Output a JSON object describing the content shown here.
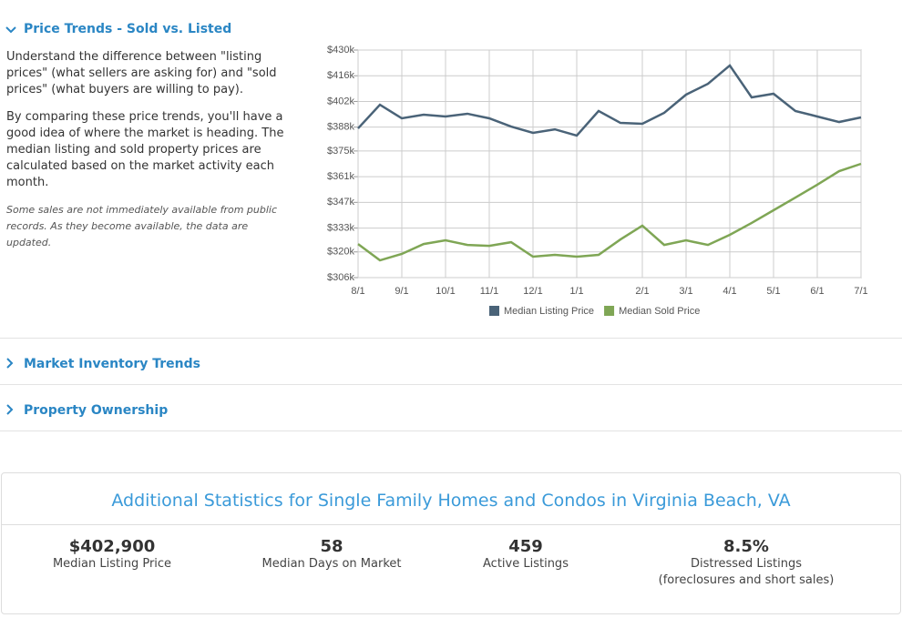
{
  "sections": [
    {
      "title": "Price Trends - Sold vs. Listed",
      "paragraphs": [
        "Understand the difference between \"listing prices\" (what sellers are asking for) and \"sold prices\" (what buyers are willing to pay).",
        "By comparing these price trends, you'll have a good idea of where the market is heading. The median listing and sold property prices are calculated based on the market activity each month."
      ],
      "note": "Some sales are not immediately available from public records. As they become available, the data are updated."
    },
    {
      "title": "Market Inventory Trends"
    },
    {
      "title": "Property Ownership"
    }
  ],
  "chart_data": {
    "type": "line",
    "categories": [
      "8/1",
      null,
      "9/1",
      null,
      "10/1",
      null,
      "11/1",
      null,
      "12/1",
      null,
      "1/1",
      null,
      null,
      "2/1",
      null,
      "3/1",
      null,
      "4/1",
      null,
      "5/1",
      null,
      "6/1",
      null,
      "7/1"
    ],
    "series": [
      {
        "name": "Median Listing Price",
        "color": "#4a6378",
        "values": [
          387300,
          400200,
          392800,
          394800,
          393800,
          395300,
          392800,
          388300,
          384900,
          386800,
          383400,
          396800,
          390300,
          389800,
          395800,
          405700,
          411600,
          421600,
          404200,
          406200,
          396800,
          393800,
          390800,
          393300
        ]
      },
      {
        "name": "Median Sold Price",
        "color": "#7fa655",
        "values": [
          324300,
          315400,
          318900,
          324300,
          326300,
          323800,
          323300,
          325300,
          317400,
          318400,
          317400,
          318400,
          326800,
          334300,
          323800,
          326300,
          323800,
          329300,
          335800,
          342700,
          349600,
          356600,
          364000,
          368000
        ]
      }
    ],
    "ylim": [
      306000,
      430000
    ],
    "yticks": [
      {
        "value": 306000,
        "label": "$306k"
      },
      {
        "value": 320000,
        "label": "$320k"
      },
      {
        "value": 333000,
        "label": "$333k"
      },
      {
        "value": 347000,
        "label": "$347k"
      },
      {
        "value": 361000,
        "label": "$361k"
      },
      {
        "value": 375000,
        "label": "$375k"
      },
      {
        "value": 388000,
        "label": "$388k"
      },
      {
        "value": 402000,
        "label": "$402k"
      },
      {
        "value": 416000,
        "label": "$416k"
      },
      {
        "value": 430000,
        "label": "$430k"
      }
    ],
    "grid": true,
    "legend": "bottom"
  },
  "stats": {
    "title": "Additional Statistics for Single Family Homes and Condos in Virginia Beach, VA",
    "items": [
      {
        "value": "$402,900",
        "label": "Median Listing Price"
      },
      {
        "value": "58",
        "label": "Median Days on Market"
      },
      {
        "value": "459",
        "label": "Active Listings"
      },
      {
        "value": "8.5%",
        "label": "Distressed Listings",
        "sublabel": "(foreclosures and short sales)"
      }
    ]
  }
}
